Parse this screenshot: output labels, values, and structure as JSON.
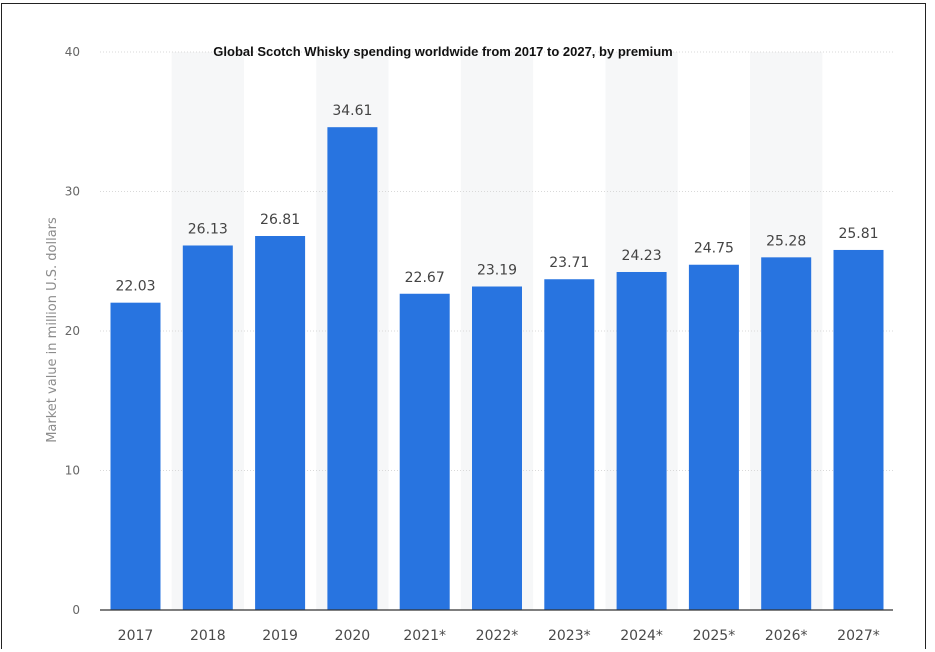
{
  "chart_data": {
    "type": "bar",
    "title": "Global Scotch Whisky spending worldwide from 2017 to 2027, by premium",
    "xlabel": "",
    "ylabel": "Market value in million U.S. dollars",
    "categories": [
      "2017",
      "2018",
      "2019",
      "2020",
      "2021*",
      "2022*",
      "2023*",
      "2024*",
      "2025*",
      "2026*",
      "2027*"
    ],
    "values": [
      22.03,
      26.13,
      26.81,
      34.61,
      22.67,
      23.19,
      23.71,
      24.23,
      24.75,
      25.28,
      25.81
    ],
    "value_labels": [
      "22.03",
      "26.13",
      "26.81",
      "34.61",
      "22.67",
      "23.19",
      "23.71",
      "24.23",
      "24.75",
      "25.28",
      "25.81"
    ],
    "ylim": [
      0,
      40
    ],
    "yticks": [
      0,
      10,
      20,
      30,
      40
    ],
    "ytick_labels": [
      "0",
      "10",
      "20",
      "30",
      "40"
    ],
    "grid": true,
    "bar_color": "#2874e0"
  }
}
